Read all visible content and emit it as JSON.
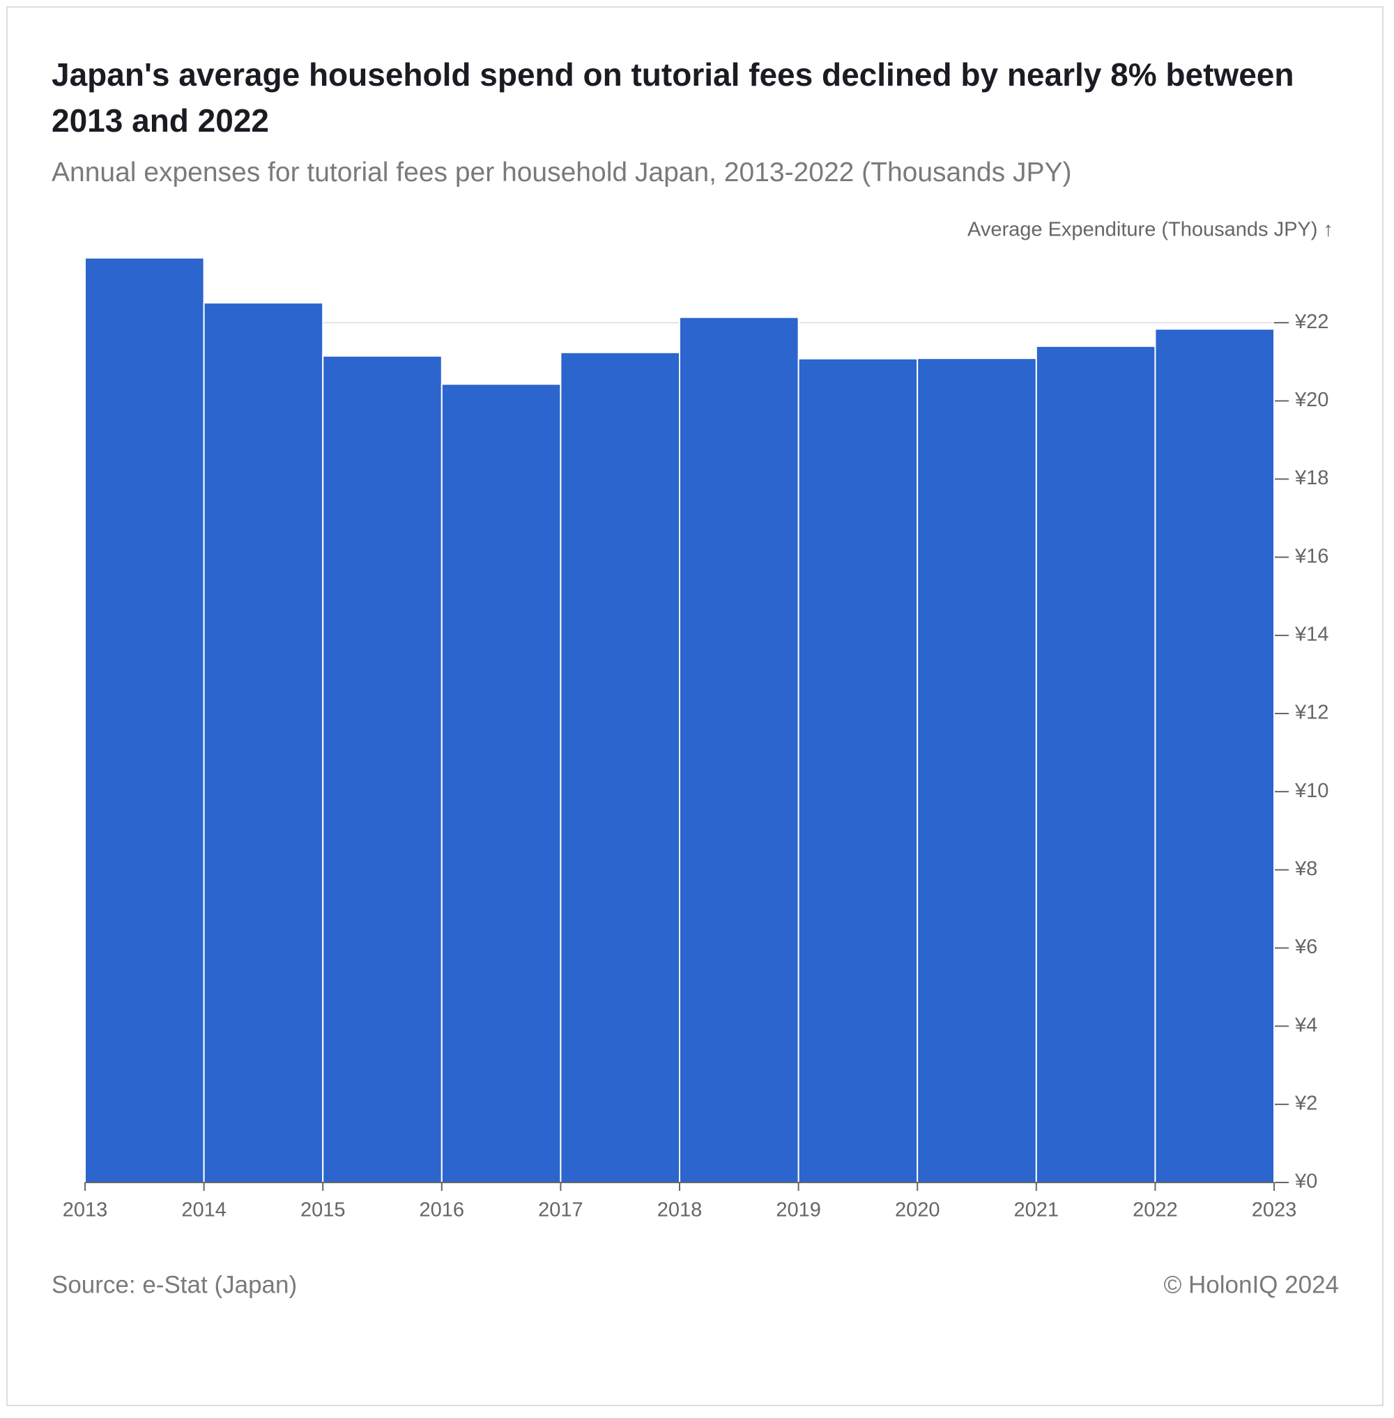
{
  "chart_data": {
    "type": "histogram",
    "title": "Japan's average household spend on tutorial fees declined by nearly 8% between 2013 and 2022",
    "subtitle": "Annual expenses for tutorial fees per household Japan, 2013-2022 (Thousands JPY)",
    "y_label": "Average Expenditure (Thousands JPY) ↑",
    "source": "Source: e-Stat (Japan)",
    "credit": "© HolonIQ 2024",
    "bins": [
      2013,
      2014,
      2015,
      2016,
      2017,
      2018,
      2019,
      2020,
      2021,
      2022,
      2023
    ],
    "values": [
      23.66,
      22.51,
      21.15,
      20.43,
      21.24,
      22.14,
      21.08,
      21.09,
      21.4,
      21.84
    ],
    "color": "#2b65cd",
    "xlim": [
      2013,
      2023
    ],
    "xticks": [
      2013,
      2014,
      2015,
      2016,
      2017,
      2018,
      2019,
      2020,
      2021,
      2022,
      2023
    ],
    "ylim": [
      0,
      24
    ],
    "yticks": [
      {
        "value": 0,
        "label": "¥0"
      },
      {
        "value": 2,
        "label": "¥2"
      },
      {
        "value": 4,
        "label": "¥4"
      },
      {
        "value": 6,
        "label": "¥6"
      },
      {
        "value": 8,
        "label": "¥8"
      },
      {
        "value": 10,
        "label": "¥10"
      },
      {
        "value": 12,
        "label": "¥12"
      },
      {
        "value": 14,
        "label": "¥14"
      },
      {
        "value": 16,
        "label": "¥16"
      },
      {
        "value": 18,
        "label": "¥18"
      },
      {
        "value": 20,
        "label": "¥20"
      },
      {
        "value": 22,
        "label": "¥22"
      }
    ],
    "grid": true
  }
}
